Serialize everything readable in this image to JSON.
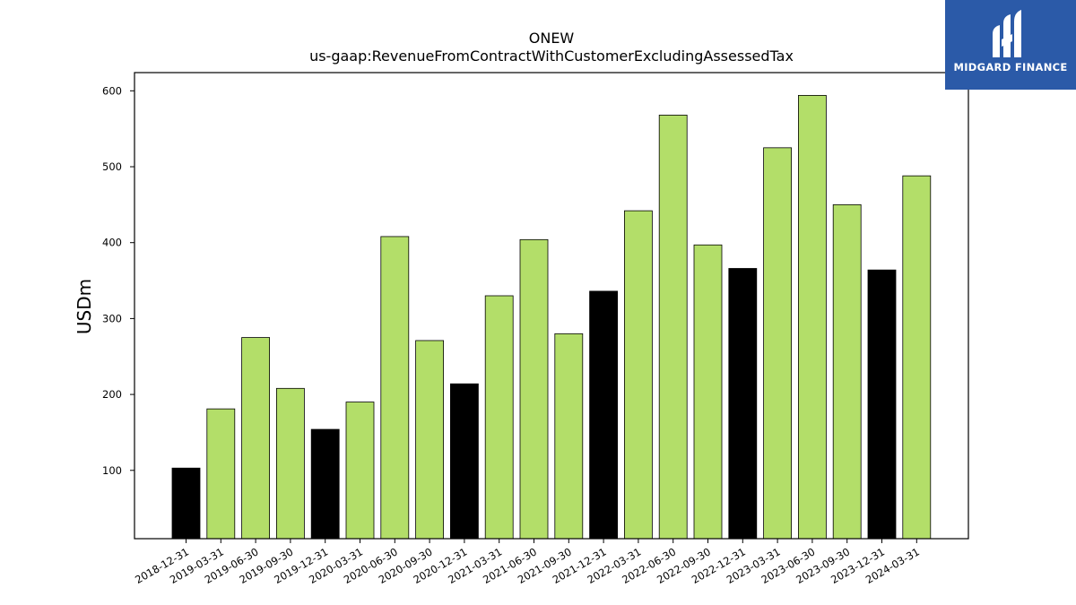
{
  "chart_data": {
    "type": "bar",
    "title": "ONEW",
    "subtitle": "us-gaap:RevenueFromContractWithCustomerExcludingAssessedTax",
    "xlabel": "",
    "ylabel": "USDm",
    "ylim": [
      10,
      624
    ],
    "yticks": [
      100,
      200,
      300,
      400,
      500,
      600
    ],
    "grid": false,
    "categories": [
      "2018-12-31",
      "2019-03-31",
      "2019-06-30",
      "2019-09-30",
      "2019-12-31",
      "2020-03-31",
      "2020-06-30",
      "2020-09-30",
      "2020-12-31",
      "2021-03-31",
      "2021-06-30",
      "2021-09-30",
      "2021-12-31",
      "2022-03-31",
      "2022-06-30",
      "2022-09-30",
      "2022-12-31",
      "2023-03-31",
      "2023-06-30",
      "2023-09-30",
      "2023-12-31",
      "2024-03-31"
    ],
    "values": [
      103,
      181,
      275,
      208,
      154,
      190,
      408,
      271,
      214,
      330,
      404,
      280,
      336,
      442,
      568,
      397,
      366,
      525,
      594,
      450,
      364,
      488
    ],
    "bar_colors": [
      "#000000",
      "#b3de69",
      "#b3de69",
      "#b3de69",
      "#000000",
      "#b3de69",
      "#b3de69",
      "#b3de69",
      "#000000",
      "#b3de69",
      "#b3de69",
      "#b3de69",
      "#000000",
      "#b3de69",
      "#b3de69",
      "#b3de69",
      "#000000",
      "#b3de69",
      "#b3de69",
      "#b3de69",
      "#000000",
      "#b3de69"
    ]
  },
  "logo": {
    "text": "MIDGARD FINANCE",
    "color": "#2b5aa8"
  }
}
